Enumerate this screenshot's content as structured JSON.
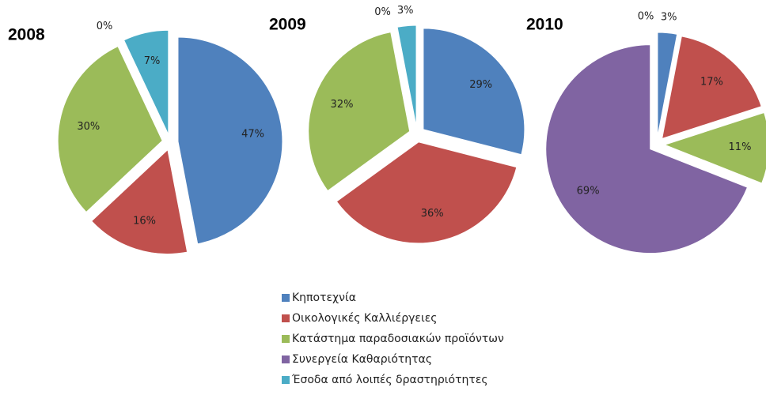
{
  "chart_data": [
    {
      "type": "pie",
      "title": "2008",
      "values": [
        47,
        16,
        30,
        0,
        7
      ],
      "value_labels": [
        "47%",
        "16%",
        "30%",
        "0%",
        "7%"
      ]
    },
    {
      "type": "pie",
      "title": "2009",
      "values": [
        29,
        36,
        32,
        0,
        3
      ],
      "value_labels": [
        "29%",
        "36%",
        "32%",
        "0%",
        "3%"
      ]
    },
    {
      "type": "pie",
      "title": "2010",
      "values": [
        3,
        17,
        11,
        69,
        0
      ],
      "value_labels": [
        "3%",
        "17%",
        "11%",
        "69%",
        "0%"
      ]
    }
  ],
  "legend": {
    "categories": [
      "Κηποτεχνία",
      "Οικολογικές Καλλιέργειες",
      "Κατάστημα παραδοσιακών προϊόντων",
      "Συνεργεία Καθαριότητας",
      "Έσοδα από λοιπές δραστηριότητες"
    ],
    "colors": [
      "#4f81bd",
      "#c0504d",
      "#9bbb59",
      "#8064a2",
      "#4bacc6"
    ]
  }
}
